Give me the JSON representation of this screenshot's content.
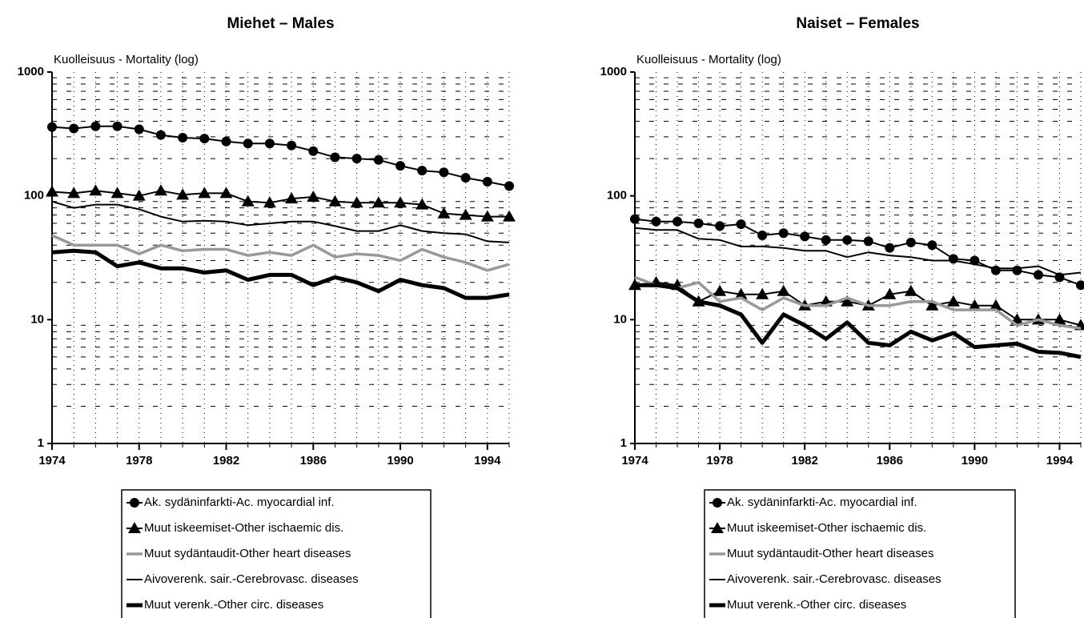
{
  "chart_data": [
    {
      "type": "line",
      "title": "Miehet – Males",
      "y_label": "Kuolleisuus - Mortality (log)",
      "log_y": true,
      "grid": true,
      "legend": "bottom",
      "x": [
        1974,
        1975,
        1976,
        1977,
        1978,
        1979,
        1980,
        1981,
        1982,
        1983,
        1984,
        1985,
        1986,
        1987,
        1988,
        1989,
        1990,
        1991,
        1992,
        1993,
        1994,
        1995
      ],
      "xlim": [
        1974,
        1995
      ],
      "xticks": [
        1974,
        1978,
        1982,
        1986,
        1990,
        1994
      ],
      "ylim": [
        1,
        1000
      ],
      "yticks": [
        1,
        10,
        100,
        1000
      ],
      "minor_yticks": [
        2,
        3,
        4,
        5,
        6,
        7,
        8,
        9,
        20,
        30,
        40,
        50,
        60,
        70,
        80,
        90,
        200,
        300,
        400,
        500,
        600,
        700,
        800,
        900
      ],
      "series": [
        {
          "name": "Ak. sydäninfarkti-Ac. myocardial inf.",
          "color": "#000000",
          "width": 2,
          "marker": "circle",
          "values": [
            360,
            350,
            365,
            365,
            345,
            310,
            295,
            290,
            275,
            265,
            265,
            255,
            230,
            205,
            200,
            195,
            175,
            160,
            155,
            140,
            130,
            120
          ]
        },
        {
          "name": "Muut iskeemiset-Other ischaemic dis.",
          "color": "#000000",
          "width": 2,
          "marker": "triangle",
          "values": [
            108,
            105,
            110,
            105,
            100,
            110,
            102,
            105,
            105,
            90,
            88,
            95,
            98,
            90,
            88,
            88,
            88,
            85,
            72,
            70,
            68,
            68
          ]
        },
        {
          "name": "Muut sydäntaudit-Other heart diseases",
          "color": "#999999",
          "width": 3.5,
          "values": [
            48,
            40,
            40,
            40,
            34,
            40,
            36,
            37,
            37,
            33,
            35,
            33,
            40,
            32,
            34,
            33,
            30,
            37,
            32,
            29,
            25,
            28
          ]
        },
        {
          "name": "Aivoverenk. sair.-Cerebrovasc. diseases",
          "color": "#000000",
          "width": 2,
          "values": [
            90,
            80,
            85,
            85,
            78,
            68,
            62,
            63,
            62,
            58,
            60,
            62,
            62,
            57,
            52,
            52,
            58,
            52,
            50,
            49,
            43,
            42
          ]
        },
        {
          "name": "Muut verenk.-Other circ. diseases",
          "color": "#000000",
          "width": 5,
          "values": [
            35,
            36,
            35,
            27,
            29,
            26,
            26,
            24,
            25,
            21,
            23,
            23,
            19,
            22,
            20,
            17,
            21,
            19,
            18,
            15,
            15,
            16
          ]
        }
      ]
    },
    {
      "type": "line",
      "title": "Naiset – Females",
      "y_label": "Kuolleisuus - Mortality (log)",
      "log_y": true,
      "grid": true,
      "legend": "bottom",
      "x": [
        1974,
        1975,
        1976,
        1977,
        1978,
        1979,
        1980,
        1981,
        1982,
        1983,
        1984,
        1985,
        1986,
        1987,
        1988,
        1989,
        1990,
        1991,
        1992,
        1993,
        1994,
        1995
      ],
      "xlim": [
        1974,
        1995
      ],
      "xticks": [
        1974,
        1978,
        1982,
        1986,
        1990,
        1994
      ],
      "ylim": [
        1,
        1000
      ],
      "yticks": [
        1,
        10,
        100,
        1000
      ],
      "minor_yticks": [
        2,
        3,
        4,
        5,
        6,
        7,
        8,
        9,
        20,
        30,
        40,
        50,
        60,
        70,
        80,
        90,
        200,
        300,
        400,
        500,
        600,
        700,
        800,
        900
      ],
      "series": [
        {
          "name": "Ak. sydäninfarkti-Ac. myocardial inf.",
          "color": "#000000",
          "width": 2,
          "marker": "circle",
          "values": [
            65,
            62,
            62,
            60,
            57,
            59,
            48,
            50,
            47,
            44,
            44,
            43,
            38,
            42,
            40,
            31,
            30,
            25,
            25,
            23,
            22,
            19
          ]
        },
        {
          "name": "Muut iskeemiset-Other ischaemic dis.",
          "color": "#000000",
          "width": 2,
          "marker": "triangle",
          "values": [
            19,
            20,
            19,
            14,
            17,
            16,
            16,
            17,
            13,
            14,
            14,
            13,
            16,
            17,
            13,
            14,
            13,
            13,
            10,
            10,
            10,
            9
          ]
        },
        {
          "name": "Muut sydäntaudit-Other heart diseases",
          "color": "#999999",
          "width": 3.5,
          "values": [
            22,
            19,
            18,
            20,
            14,
            15,
            12,
            15,
            13,
            13,
            15,
            13,
            13,
            14,
            14,
            12,
            12,
            12,
            9,
            10,
            9,
            8.5
          ]
        },
        {
          "name": "Aivoverenk. sair.-Cerebrovasc. diseases",
          "color": "#000000",
          "width": 2,
          "values": [
            55,
            53,
            53,
            45,
            44,
            39,
            39,
            38,
            36,
            36,
            32,
            35,
            33,
            32,
            30,
            30,
            28,
            26,
            26,
            27,
            23,
            24
          ]
        },
        {
          "name": "Muut verenk.-Other circ. diseases",
          "color": "#000000",
          "width": 5,
          "values": [
            19,
            19,
            18,
            14,
            13,
            11,
            6.5,
            11,
            9,
            7,
            9.5,
            6.5,
            6.2,
            8,
            6.8,
            7.8,
            6,
            6.2,
            6.4,
            5.5,
            5.4,
            5
          ]
        }
      ]
    }
  ]
}
